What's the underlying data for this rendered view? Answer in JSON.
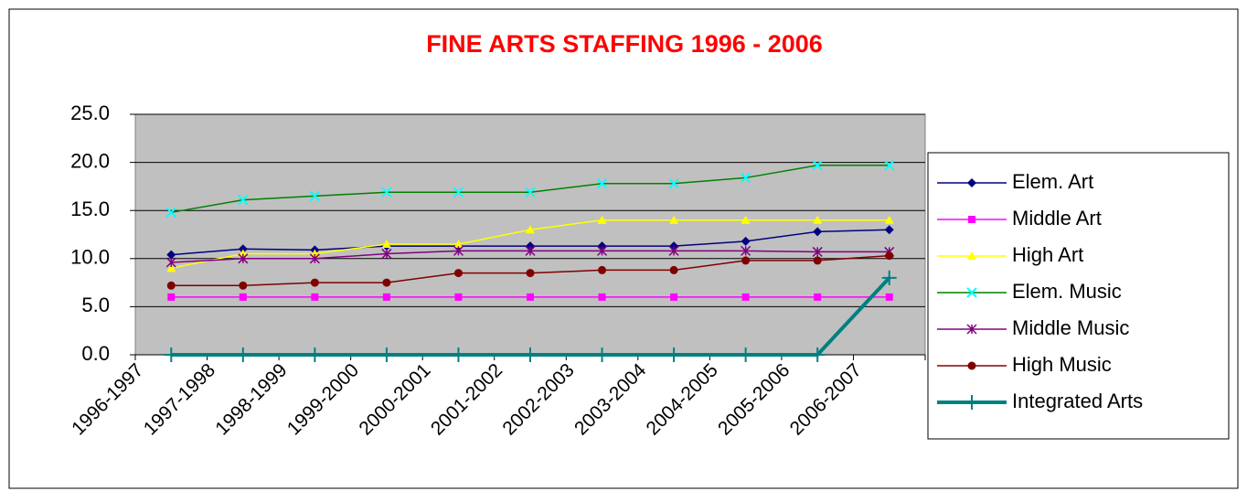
{
  "chart_data": {
    "type": "line",
    "title": "FINE ARTS STAFFING 1996 - 2006",
    "categories": [
      "1996-1997",
      "1997-1998",
      "1998-1999",
      "1999-2000",
      "2000-2001",
      "2001-2002",
      "2002-2003",
      "2003-2004",
      "2004-2005",
      "2005-2006",
      "2006-2007"
    ],
    "series": [
      {
        "name": "Elem. Art",
        "color": "#000080",
        "marker": "diamond",
        "values": [
          10.4,
          11.0,
          10.9,
          11.3,
          11.3,
          11.3,
          11.3,
          11.3,
          11.8,
          12.8,
          13.0
        ]
      },
      {
        "name": "Middle Art",
        "color": "#ff00ff",
        "marker": "square",
        "values": [
          6.0,
          6.0,
          6.0,
          6.0,
          6.0,
          6.0,
          6.0,
          6.0,
          6.0,
          6.0,
          6.0
        ]
      },
      {
        "name": "High Art",
        "color": "#ffff00",
        "marker": "triangle",
        "values": [
          9.0,
          10.5,
          10.5,
          11.5,
          11.5,
          13.0,
          14.0,
          14.0,
          14.0,
          14.0,
          14.0
        ]
      },
      {
        "name": "Elem. Music",
        "color": "#008000",
        "marker_color": "#00ffff",
        "marker": "x",
        "values": [
          14.8,
          16.1,
          16.5,
          16.9,
          16.9,
          16.9,
          17.8,
          17.8,
          18.4,
          19.7,
          19.7
        ]
      },
      {
        "name": "Middle Music",
        "color": "#800080",
        "marker": "star",
        "values": [
          9.6,
          10.0,
          10.0,
          10.5,
          10.8,
          10.8,
          10.8,
          10.8,
          10.8,
          10.7,
          10.7
        ]
      },
      {
        "name": "High Music",
        "color": "#800000",
        "marker": "circle",
        "values": [
          7.2,
          7.2,
          7.5,
          7.5,
          8.5,
          8.5,
          8.8,
          8.8,
          9.8,
          9.8,
          10.3
        ]
      },
      {
        "name": "Integrated Arts",
        "color": "#008080",
        "marker": "plus",
        "line_width": 4,
        "values": [
          0,
          0,
          0,
          0,
          0,
          0,
          0,
          0,
          0,
          0,
          8.0
        ]
      }
    ],
    "ylim": [
      0,
      25
    ],
    "yticks": [
      {
        "value": 0,
        "label": "0.0"
      },
      {
        "value": 5,
        "label": "5.0"
      },
      {
        "value": 10,
        "label": "10.0"
      },
      {
        "value": 15,
        "label": "15.0"
      },
      {
        "value": 20,
        "label": "20.0"
      },
      {
        "value": 25,
        "label": "25.0"
      }
    ],
    "grid": true,
    "plot_background": "#c0c0c0",
    "legend": "right"
  }
}
